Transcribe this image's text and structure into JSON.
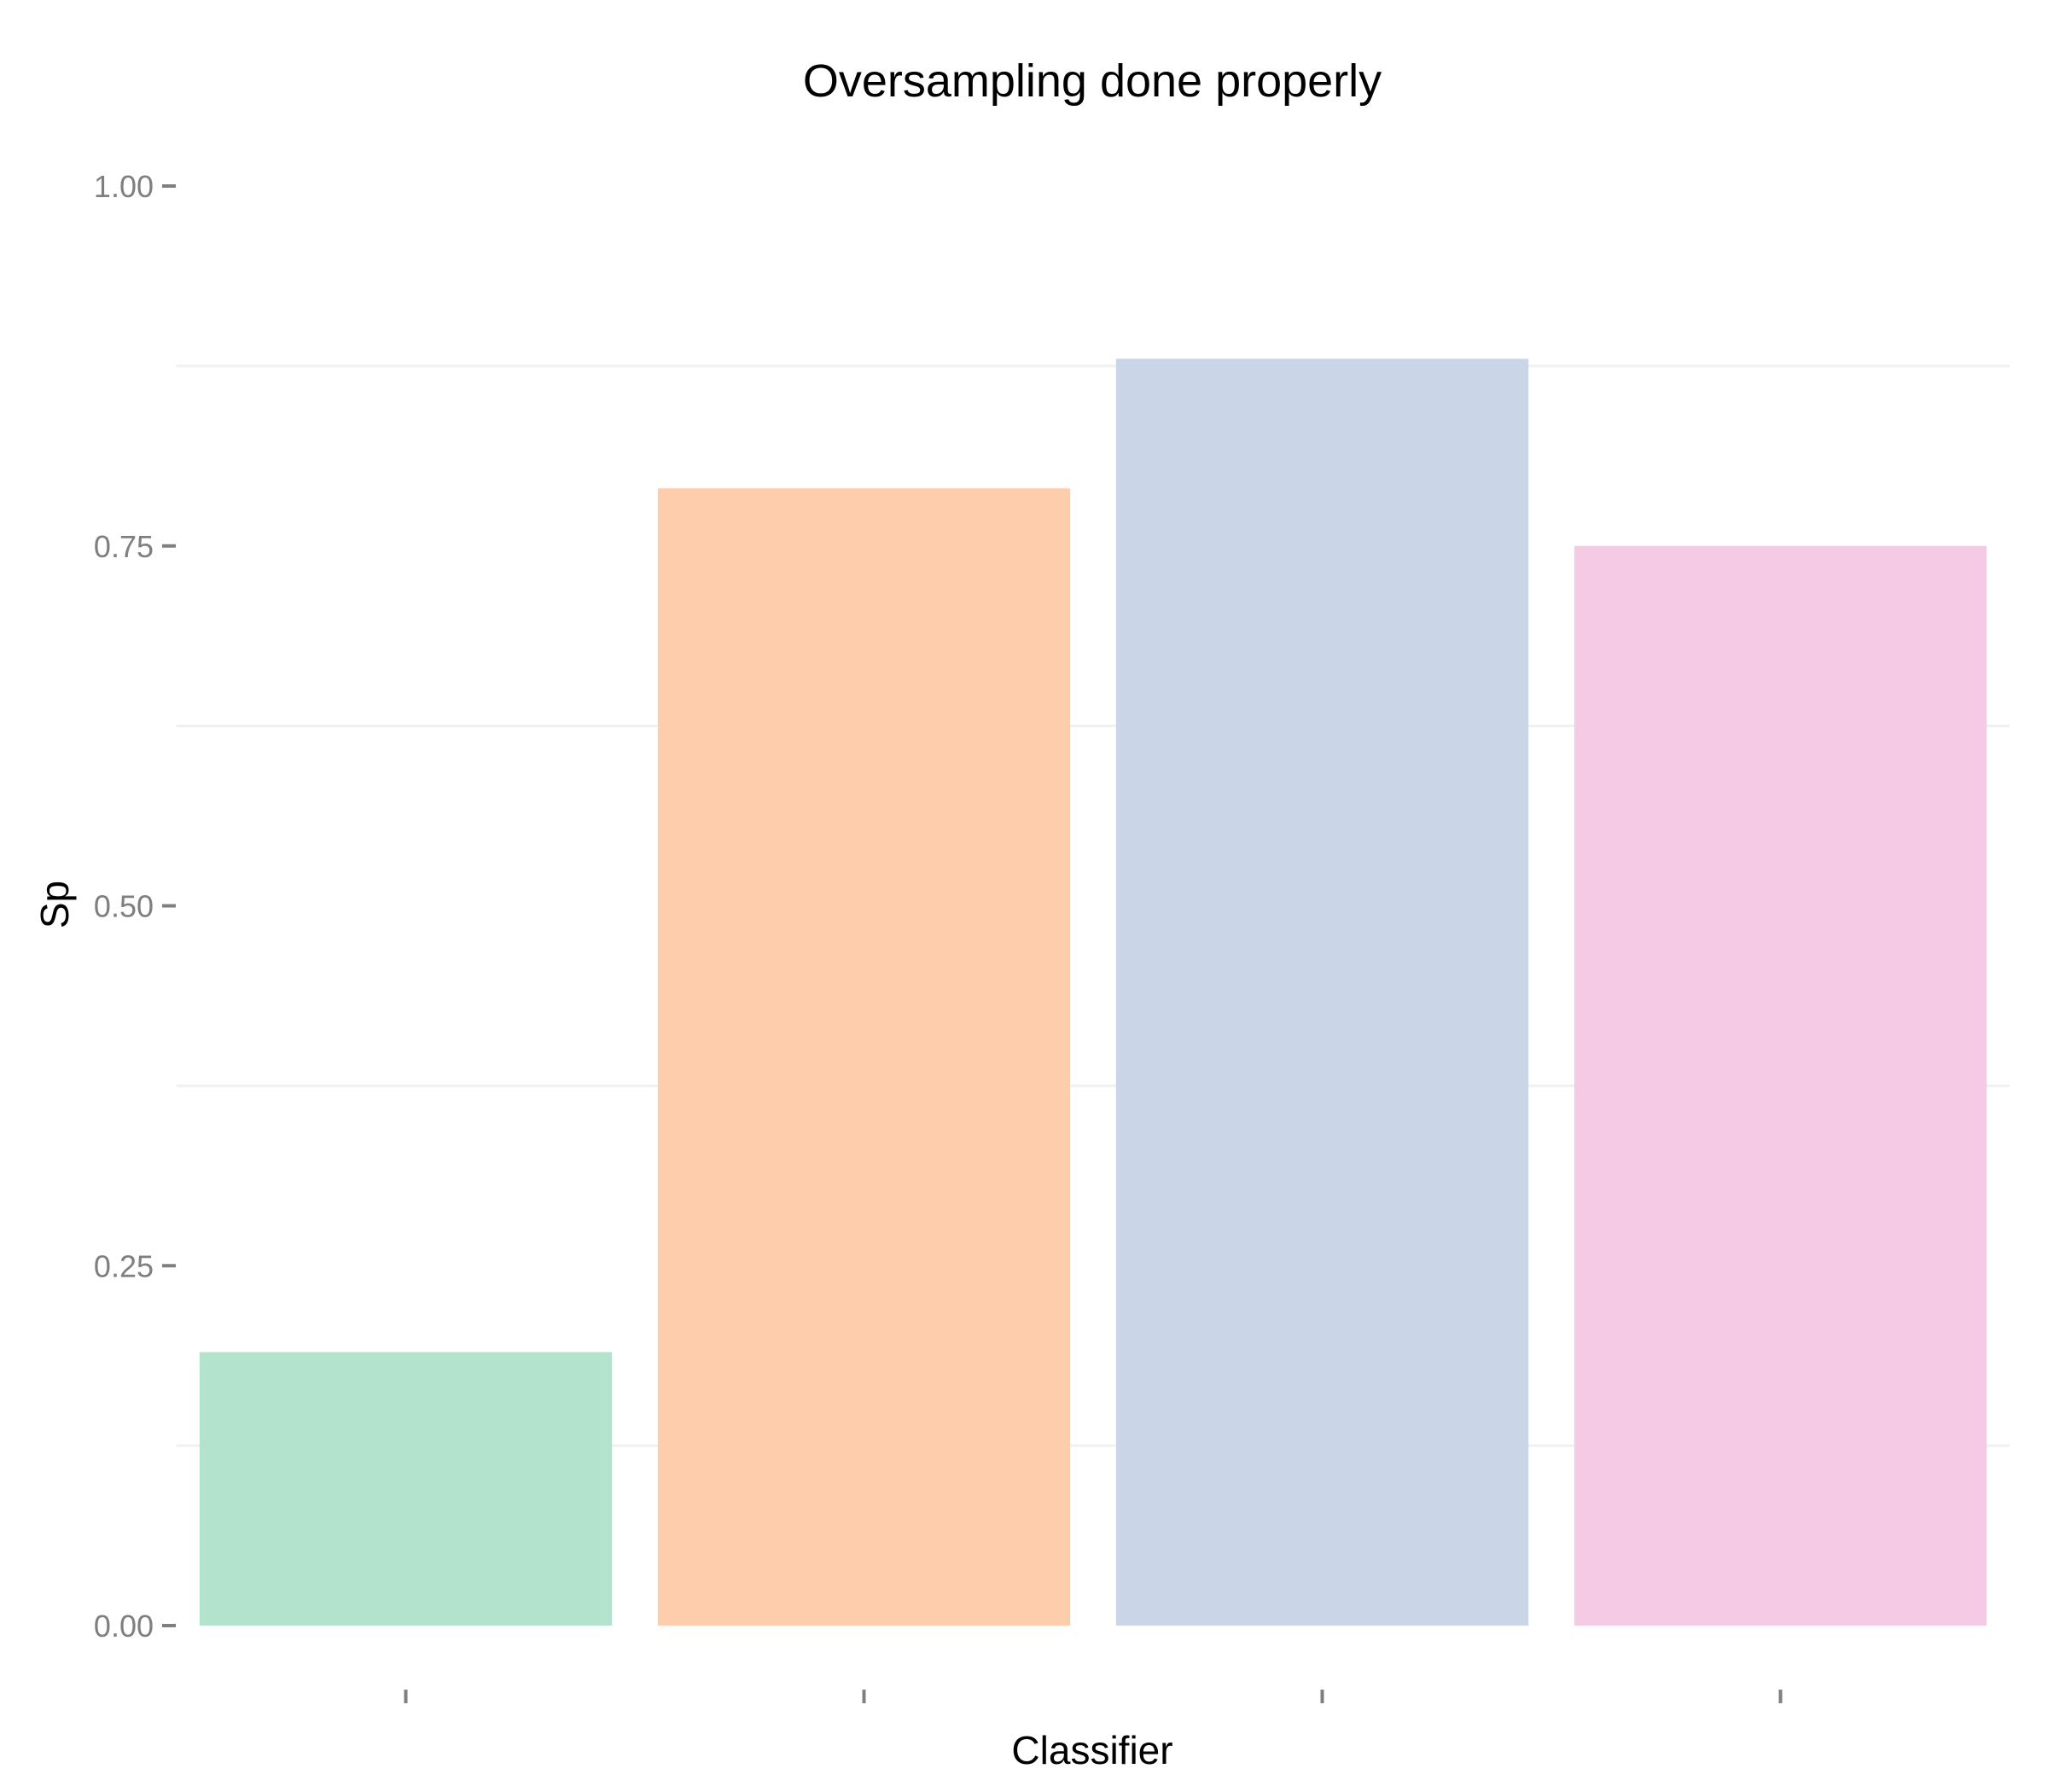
{
  "chart_data": {
    "type": "bar",
    "title": "Oversampling done properly",
    "xlabel": "Classifier",
    "ylabel": "Sp",
    "categories": [
      "",
      "",
      "",
      ""
    ],
    "values": [
      0.19,
      0.79,
      0.88,
      0.75
    ],
    "colors": [
      "#b3e2cd",
      "#fdcdac",
      "#cbd5e8",
      "#f4cae4"
    ],
    "ylim": [
      -0.05,
      1.0
    ],
    "y_ticks": [
      0.0,
      0.25,
      0.5,
      0.75,
      1.0
    ],
    "y_tick_labels": [
      "0.00",
      "0.25",
      "0.50",
      "0.75",
      "1.00"
    ],
    "grid": true,
    "legend": "none"
  }
}
